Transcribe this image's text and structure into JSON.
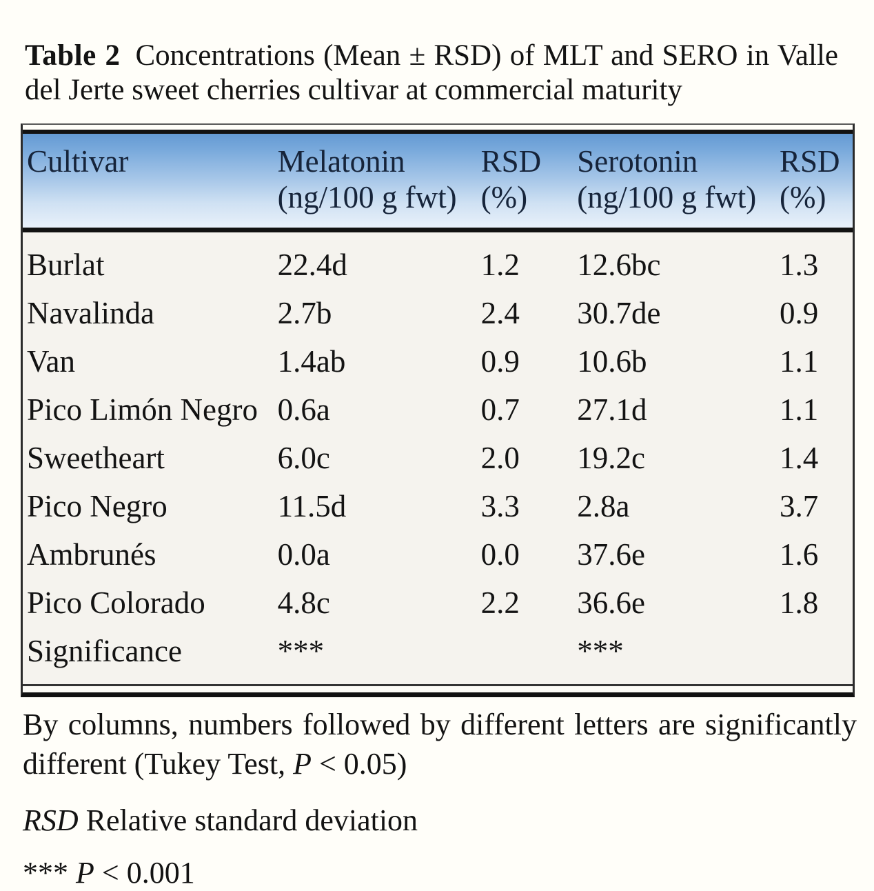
{
  "title": {
    "label": "Table 2",
    "text": "Concentrations (Mean ± RSD) of MLT and SERO in Valle del Jerte sweet cherries cultivar at commercial maturity"
  },
  "table": {
    "columns": [
      {
        "line1": "Cultivar",
        "line2": ""
      },
      {
        "line1": "Melatonin",
        "line2": "(ng/100 g fwt)"
      },
      {
        "line1": "RSD",
        "line2": "(%)"
      },
      {
        "line1": "Serotonin",
        "line2": "(ng/100 g fwt)"
      },
      {
        "line1": "RSD",
        "line2": "(%)"
      }
    ],
    "rows": [
      [
        "Burlat",
        "22.4d",
        "1.2",
        "12.6bc",
        "1.3"
      ],
      [
        "Navalinda",
        "2.7b",
        "2.4",
        "30.7de",
        "0.9"
      ],
      [
        "Van",
        "1.4ab",
        "0.9",
        "10.6b",
        "1.1"
      ],
      [
        "Pico Limón Negro",
        "0.6a",
        "0.7",
        "27.1d",
        "1.1"
      ],
      [
        "Sweetheart",
        "6.0c",
        "2.0",
        "19.2c",
        "1.4"
      ],
      [
        "Pico Negro",
        "11.5d",
        "3.3",
        "2.8a",
        "3.7"
      ],
      [
        "Ambrunés",
        "0.0a",
        "0.0",
        "37.6e",
        "1.6"
      ],
      [
        "Pico Colorado",
        "4.8c",
        "2.2",
        "36.6e",
        "1.8"
      ],
      [
        "Significance",
        "***",
        "",
        "***",
        ""
      ]
    ]
  },
  "footnotes": {
    "fn1_pre": "By columns, numbers followed by different letters are significantly different (Tukey Test, ",
    "fn1_italic": "P",
    "fn1_post": " < 0.05)",
    "fn2_italic": "RSD",
    "fn2_text": " Relative standard deviation",
    "fn3_pre": "*** ",
    "fn3_italic": "P",
    "fn3_post": " < 0.001"
  },
  "colors": {
    "header_gradient_top": "#649ad3",
    "header_gradient_bottom": "#e9f1fa",
    "table_body_bg": "#f5f3ee",
    "page_bg": "#fffef9",
    "rule_color": "#111111",
    "text_color": "#131313"
  }
}
